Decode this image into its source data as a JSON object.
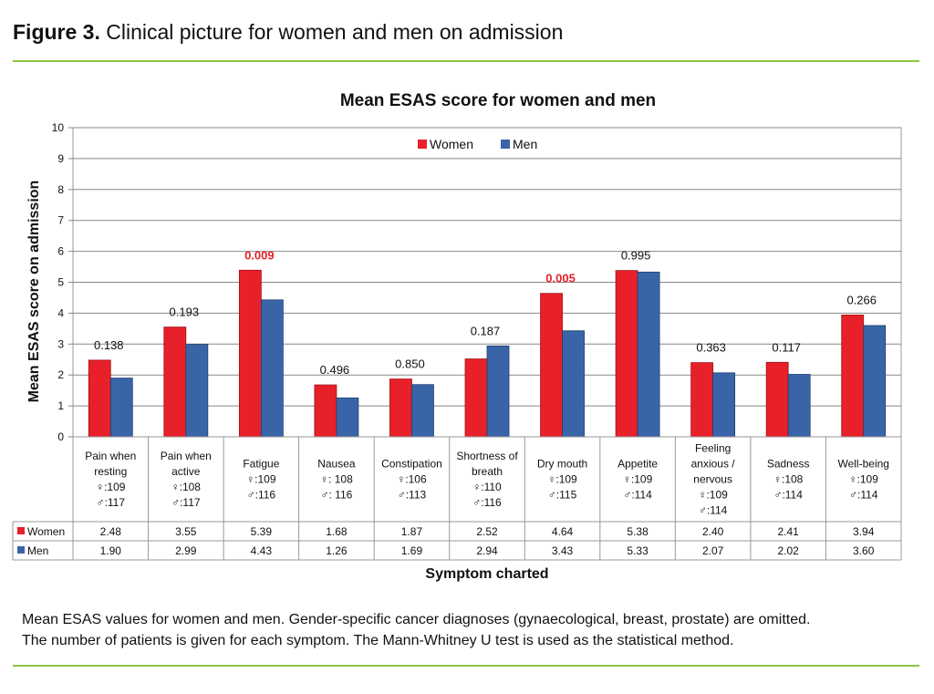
{
  "figure": {
    "label": "Figure 3.",
    "title": "Clinical picture for women and men on admission",
    "caption_lines": [
      "Mean ESAS values for women and men. Gender-specific cancer diagnoses (gynaecological, breast, prostate) are omitted.",
      "The number of patients is given for each symptom. The Mann-Whitney U test is used as the statistical method."
    ]
  },
  "colors": {
    "women": "#e8202a",
    "men": "#3a64a8",
    "significant": "#e8202a",
    "accent_rule": "#8cc63f"
  },
  "chart_data": {
    "type": "bar",
    "title": "Mean ESAS score for women and men",
    "xlabel": "Symptom charted",
    "ylabel": "Mean ESAS score on admission",
    "ylim": [
      0,
      10
    ],
    "yticks": [
      0,
      1,
      2,
      3,
      4,
      5,
      6,
      7,
      8,
      9,
      10
    ],
    "grid": true,
    "legend_placement": "top-center",
    "categories": [
      {
        "lines": [
          "Pain when",
          "resting",
          "♀:109",
          "♂:117"
        ]
      },
      {
        "lines": [
          "Pain when",
          "active",
          "♀:108",
          "♂:117"
        ]
      },
      {
        "lines": [
          "Fatigue",
          "♀:109",
          "♂:116"
        ]
      },
      {
        "lines": [
          "Nausea",
          "♀: 108",
          "♂: 116"
        ]
      },
      {
        "lines": [
          "Constipation",
          "♀:106",
          "♂:113"
        ]
      },
      {
        "lines": [
          "Shortness of",
          "breath",
          "♀:110",
          "♂:116"
        ]
      },
      {
        "lines": [
          "Dry mouth",
          "♀:109",
          "♂:115"
        ]
      },
      {
        "lines": [
          "Appetite",
          "♀:109",
          "♂:114"
        ]
      },
      {
        "lines": [
          "Feeling",
          "anxious /",
          "nervous",
          "♀:109",
          "♂:114"
        ]
      },
      {
        "lines": [
          "Sadness",
          "♀:108",
          "♂:114"
        ]
      },
      {
        "lines": [
          "Well-being",
          "♀:109",
          "♂:114"
        ]
      }
    ],
    "series": [
      {
        "name": "Women",
        "values": [
          2.48,
          3.55,
          5.39,
          1.68,
          1.87,
          2.52,
          4.64,
          5.38,
          2.4,
          2.41,
          3.94
        ],
        "labels": [
          "2.48",
          "3.55",
          "5.39",
          "1.68",
          "1.87",
          "2.52",
          "4.64",
          "5.38",
          "2.40",
          "2.41",
          "3.94"
        ]
      },
      {
        "name": "Men",
        "values": [
          1.9,
          2.99,
          4.43,
          1.26,
          1.69,
          2.94,
          3.43,
          5.33,
          2.07,
          2.02,
          3.6
        ],
        "labels": [
          "1.90",
          "2.99",
          "4.43",
          "1.26",
          "1.69",
          "2.94",
          "3.43",
          "5.33",
          "2.07",
          "2.02",
          "3.60"
        ]
      }
    ],
    "p_values": [
      "0.138",
      "0.193",
      "0.009",
      "0.496",
      "0.850",
      "0.187",
      "0.005",
      "0.995",
      "0.363",
      "0.117",
      "0.266"
    ],
    "significant": [
      false,
      false,
      true,
      false,
      false,
      false,
      true,
      false,
      false,
      false,
      false
    ]
  }
}
